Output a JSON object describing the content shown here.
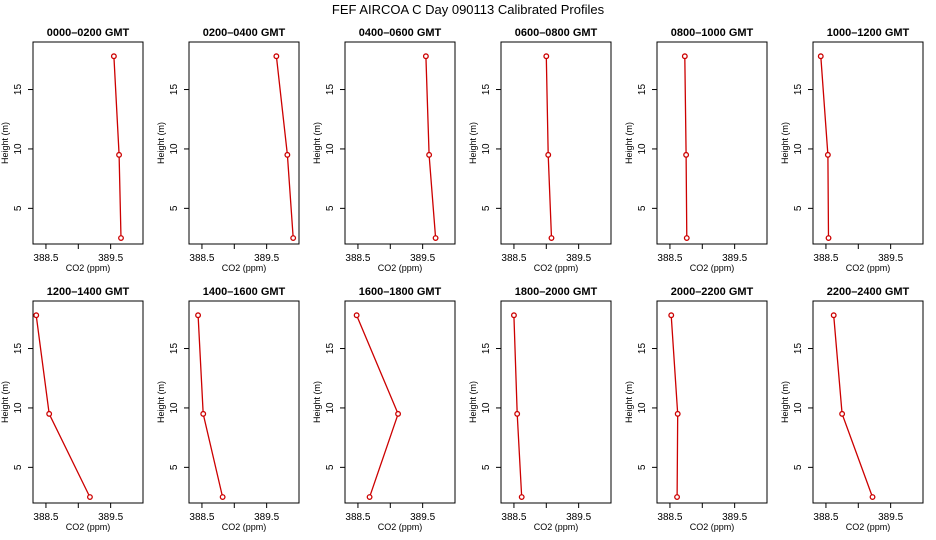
{
  "chart_data": {
    "title": "FEF AIRCOA C  Day 090113  Calibrated Profiles",
    "type": "line",
    "shared": {
      "xlabel": "CO2 (ppm)",
      "ylabel": "Height (m)",
      "xlim": [
        388.3,
        390.0
      ],
      "ylim": [
        2.0,
        19.0
      ],
      "xticks": [
        388.5,
        389.0,
        389.5
      ],
      "xtick_labels": [
        "388.5",
        "",
        "389.5"
      ],
      "yticks": [
        5,
        10,
        15
      ],
      "ytick_labels": [
        "5",
        "10",
        "15"
      ],
      "heights": [
        17.8,
        9.5,
        2.5
      ]
    },
    "panels": [
      {
        "title": "0000–0200 GMT",
        "co2": [
          389.55,
          389.63,
          389.66
        ]
      },
      {
        "title": "0200–0400 GMT",
        "co2": [
          389.65,
          389.82,
          389.91
        ]
      },
      {
        "title": "0400–0600 GMT",
        "co2": [
          389.55,
          389.6,
          389.7
        ]
      },
      {
        "title": "0600–0800 GMT",
        "co2": [
          389.0,
          389.03,
          389.08
        ]
      },
      {
        "title": "0800–1000 GMT",
        "co2": [
          388.73,
          388.75,
          388.76
        ]
      },
      {
        "title": "1000–1200 GMT",
        "co2": [
          388.42,
          388.53,
          388.54
        ]
      },
      {
        "title": "1200–1400 GMT",
        "co2": [
          388.35,
          388.55,
          389.18
        ]
      },
      {
        "title": "1400–1600 GMT",
        "co2": [
          388.44,
          388.52,
          388.82
        ]
      },
      {
        "title": "1600–1800 GMT",
        "co2": [
          388.48,
          389.12,
          388.68
        ]
      },
      {
        "title": "1800–2000 GMT",
        "co2": [
          388.5,
          388.55,
          388.62
        ]
      },
      {
        "title": "2000–2200 GMT",
        "co2": [
          388.52,
          388.62,
          388.61
        ]
      },
      {
        "title": "2200–2400 GMT",
        "co2": [
          388.62,
          388.75,
          389.22
        ]
      }
    ]
  }
}
